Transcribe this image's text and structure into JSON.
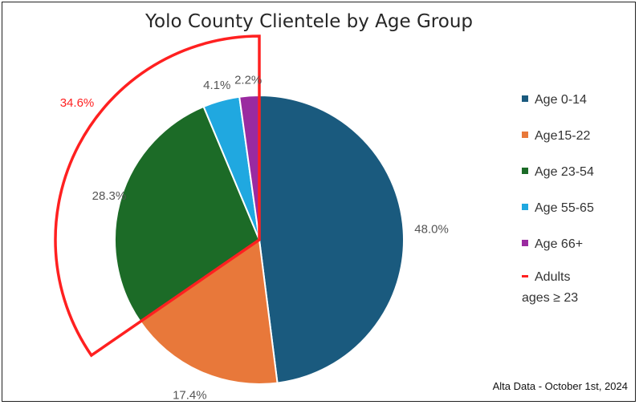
{
  "chart_data": {
    "type": "pie",
    "title": "Yolo County Clientele by Age Group",
    "slices": [
      {
        "name": "Age 0-14",
        "value": 48.0,
        "label": "48.0%",
        "color": "#1a5a7e"
      },
      {
        "name": "Age15-22",
        "value": 17.4,
        "label": "17.4%",
        "color": "#e8783a"
      },
      {
        "name": "Age 23-54",
        "value": 28.3,
        "label": "28.3%",
        "color": "#1c6b27"
      },
      {
        "name": "Age 55-65",
        "value": 4.1,
        "label": "4.1%",
        "color": "#20a8e0"
      },
      {
        "name": "Age 66+",
        "value": 2.2,
        "label": "2.2%",
        "color": "#9a2aa0"
      }
    ],
    "highlight": {
      "name_line1": "Adults",
      "name_line2": "ages ≥ 23",
      "value": 34.6,
      "label": "34.6%",
      "color": "#ff2020"
    },
    "legend_position": "right",
    "source_note": "Alta Data - October 1st, 2024"
  }
}
